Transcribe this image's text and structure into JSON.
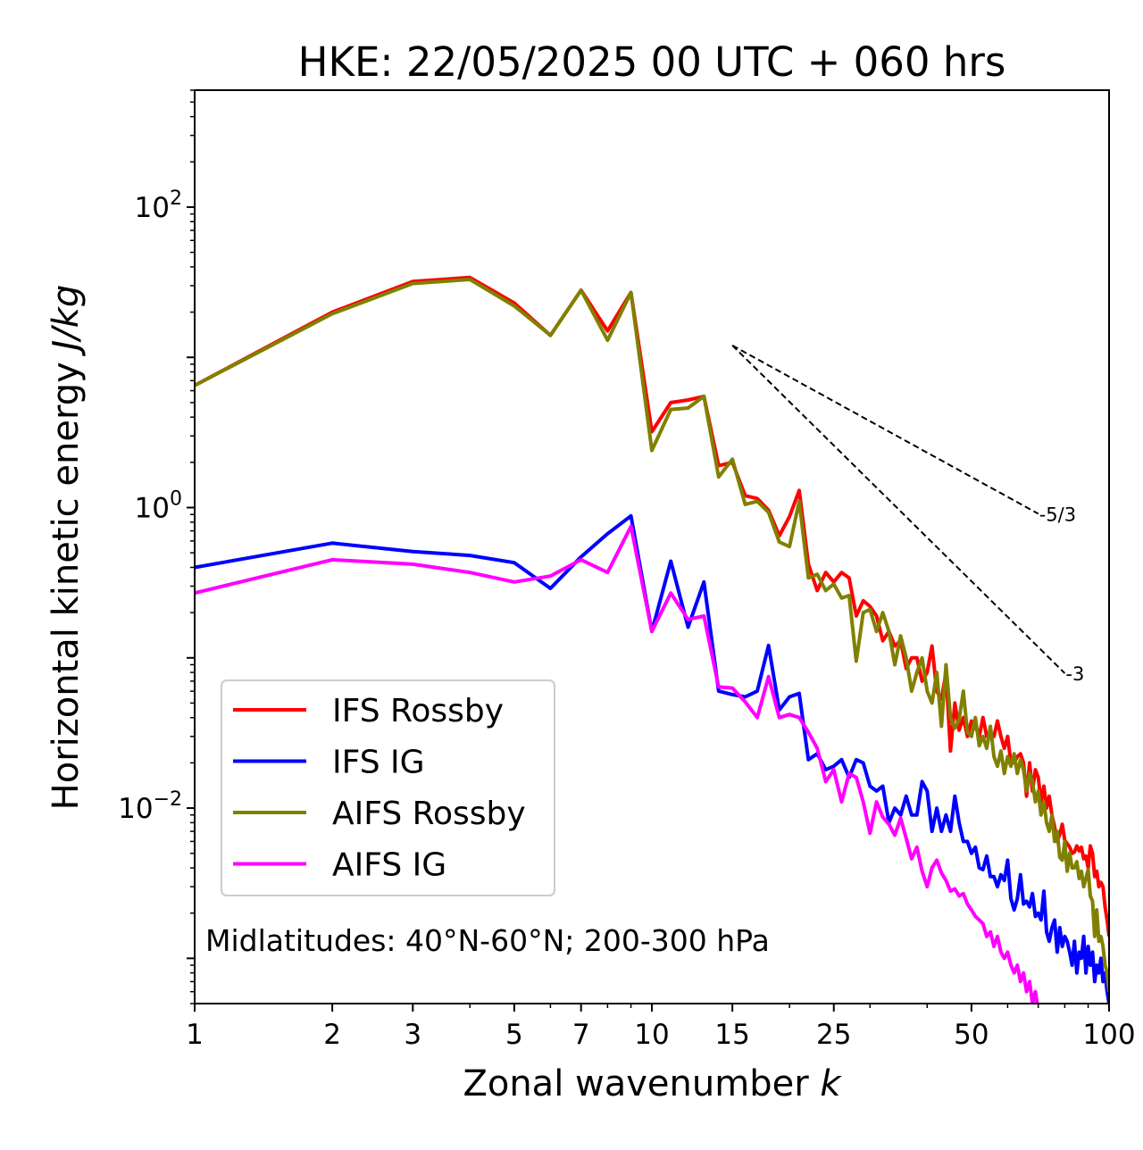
{
  "chart_data": {
    "type": "line",
    "title": "HKE: 22/05/2025 00 UTC + 060 hrs",
    "xlabel": "Zonal wavenumber",
    "xlabel_var": "k",
    "ylabel": "Horizontal kinetic energy",
    "ylabel_unit": "J/kg",
    "xscale": "log",
    "yscale": "log",
    "xlim": [
      1,
      100
    ],
    "ylim": [
      0.0005,
      600
    ],
    "x_ticks": [
      1,
      2,
      3,
      5,
      7,
      10,
      15,
      25,
      50,
      100
    ],
    "x_tick_labels": [
      "1",
      "2",
      "3",
      "5",
      "7",
      "10",
      "15",
      "25",
      "50",
      "100"
    ],
    "y_ticks": [
      0.01,
      1,
      100
    ],
    "y_tick_labels": [
      "10",
      "10",
      "10"
    ],
    "y_tick_exponents": [
      "−2",
      "0",
      "2"
    ],
    "grid": false,
    "legend_position": "lower-left",
    "annotation": "Midlatitudes: 40°N-60°N; 200-300 hPa",
    "reference_slopes": [
      {
        "label": "-5/3",
        "x": [
          15,
          70
        ],
        "y": [
          12.0,
          0.91
        ]
      },
      {
        "label": "-3",
        "x": [
          15,
          80
        ],
        "y": [
          12.0,
          0.079
        ]
      }
    ],
    "series": [
      {
        "name": "IFS Rossby",
        "color": "#ff0000",
        "x": [
          1,
          2,
          3,
          4,
          5,
          6,
          7,
          8,
          9,
          10,
          11,
          12,
          13,
          14,
          15,
          16,
          17,
          18,
          19,
          20,
          21,
          22,
          23,
          24,
          25,
          26,
          27,
          28,
          29,
          30,
          31,
          32,
          33,
          34,
          35,
          36,
          37,
          38,
          39,
          40,
          41,
          42,
          43,
          44,
          45,
          46,
          47,
          48,
          49,
          50,
          51,
          52,
          53,
          54,
          55,
          56,
          57,
          58,
          59,
          60,
          61,
          62,
          63,
          64,
          65,
          66,
          67,
          68,
          69,
          70,
          71,
          72,
          73,
          74,
          75,
          76,
          77,
          78,
          79,
          80,
          81,
          82,
          83,
          84,
          85,
          86,
          87,
          88,
          89,
          90,
          91,
          92,
          93,
          94,
          95,
          96,
          97,
          98,
          99,
          100
        ],
        "y": [
          6.5,
          20,
          32,
          34,
          23,
          14,
          28,
          15,
          27,
          3.2,
          5.0,
          5.2,
          5.5,
          1.9,
          2.0,
          1.2,
          1.15,
          0.96,
          0.65,
          0.87,
          1.3,
          0.42,
          0.28,
          0.37,
          0.32,
          0.37,
          0.34,
          0.19,
          0.24,
          0.22,
          0.19,
          0.13,
          0.15,
          0.12,
          0.13,
          0.085,
          0.1,
          0.1,
          0.07,
          0.08,
          0.12,
          0.06,
          0.053,
          0.08,
          0.024,
          0.05,
          0.033,
          0.04,
          0.03,
          0.038,
          0.035,
          0.03,
          0.04,
          0.03,
          0.03,
          0.03,
          0.038,
          0.03,
          0.025,
          0.03,
          0.02,
          0.02,
          0.022,
          0.023,
          0.02,
          0.012,
          0.02,
          0.013,
          0.018,
          0.016,
          0.011,
          0.014,
          0.01,
          0.012,
          0.009,
          0.0075,
          0.006,
          0.0067,
          0.0078,
          0.0061,
          0.0058,
          0.0055,
          0.005,
          0.0051,
          0.0056,
          0.0052,
          0.0055,
          0.0046,
          0.0048,
          0.004,
          0.0056,
          0.005,
          0.0035,
          0.0038,
          0.003,
          0.0032,
          0.003,
          0.0022,
          0.0018,
          0.0014
        ]
      },
      {
        "name": "IFS IG",
        "color": "#0000ff",
        "x": [
          1,
          2,
          3,
          4,
          5,
          6,
          7,
          8,
          9,
          10,
          11,
          12,
          13,
          14,
          15,
          16,
          17,
          18,
          19,
          20,
          21,
          22,
          23,
          24,
          25,
          26,
          27,
          28,
          29,
          30,
          31,
          32,
          33,
          34,
          35,
          36,
          37,
          38,
          39,
          40,
          41,
          42,
          43,
          44,
          45,
          46,
          47,
          48,
          49,
          50,
          51,
          52,
          53,
          54,
          55,
          56,
          57,
          58,
          59,
          60,
          61,
          62,
          63,
          64,
          65,
          66,
          67,
          68,
          69,
          70,
          71,
          72,
          73,
          74,
          75,
          76,
          77,
          78,
          79,
          80,
          81,
          82,
          83,
          84,
          85,
          86,
          87,
          88,
          89,
          90,
          91,
          92,
          93,
          94,
          95,
          96,
          97,
          98,
          99,
          100
        ],
        "y": [
          0.4,
          0.58,
          0.51,
          0.48,
          0.43,
          0.29,
          0.47,
          0.67,
          0.88,
          0.15,
          0.44,
          0.16,
          0.32,
          0.06,
          0.057,
          0.055,
          0.06,
          0.121,
          0.045,
          0.055,
          0.058,
          0.021,
          0.023,
          0.018,
          0.019,
          0.021,
          0.016,
          0.021,
          0.02,
          0.014,
          0.013,
          0.014,
          0.008,
          0.01,
          0.009,
          0.012,
          0.009,
          0.009,
          0.015,
          0.013,
          0.007,
          0.01,
          0.007,
          0.009,
          0.007,
          0.012,
          0.008,
          0.006,
          0.006,
          0.005,
          0.0055,
          0.004,
          0.0039,
          0.0048,
          0.0035,
          0.0035,
          0.003,
          0.0036,
          0.0033,
          0.0045,
          0.0025,
          0.0021,
          0.0025,
          0.0036,
          0.0023,
          0.0024,
          0.0022,
          0.0027,
          0.0019,
          0.002,
          0.0018,
          0.0028,
          0.0015,
          0.0013,
          0.0016,
          0.0018,
          0.0011,
          0.0016,
          0.0012,
          0.0014,
          0.0013,
          0.0011,
          0.0009,
          0.0013,
          0.0008,
          0.0011,
          0.001,
          0.0014,
          0.0008,
          0.0012,
          0.0009,
          0.0011,
          0.0007,
          0.0009,
          0.0008,
          0.001,
          0.0007,
          0.0008,
          0.0006,
          0.0005
        ]
      },
      {
        "name": "AIFS Rossby",
        "color": "#808000",
        "x": [
          1,
          2,
          3,
          4,
          5,
          6,
          7,
          8,
          9,
          10,
          11,
          12,
          13,
          14,
          15,
          16,
          17,
          18,
          19,
          20,
          21,
          22,
          23,
          24,
          25,
          26,
          27,
          28,
          29,
          30,
          31,
          32,
          33,
          34,
          35,
          36,
          37,
          38,
          39,
          40,
          41,
          42,
          43,
          44,
          45,
          46,
          47,
          48,
          49,
          50,
          51,
          52,
          53,
          54,
          55,
          56,
          57,
          58,
          59,
          60,
          61,
          62,
          63,
          64,
          65,
          66,
          67,
          68,
          69,
          70,
          71,
          72,
          73,
          74,
          75,
          76,
          77,
          78,
          79,
          80,
          81,
          82,
          83,
          84,
          85,
          86,
          87,
          88,
          89,
          90,
          91,
          92,
          93,
          94,
          95,
          96,
          97,
          98,
          99,
          100
        ],
        "y": [
          6.5,
          19.5,
          31,
          33,
          22,
          14,
          28,
          13,
          27,
          2.4,
          4.5,
          4.6,
          5.5,
          1.6,
          2.1,
          1.05,
          1.1,
          0.93,
          0.59,
          0.55,
          1.1,
          0.34,
          0.36,
          0.28,
          0.31,
          0.25,
          0.26,
          0.095,
          0.2,
          0.21,
          0.15,
          0.2,
          0.15,
          0.09,
          0.14,
          0.1,
          0.06,
          0.08,
          0.1,
          0.06,
          0.05,
          0.08,
          0.035,
          0.09,
          0.04,
          0.034,
          0.039,
          0.06,
          0.032,
          0.03,
          0.04,
          0.026,
          0.03,
          0.025,
          0.035,
          0.022,
          0.019,
          0.024,
          0.017,
          0.022,
          0.019,
          0.023,
          0.017,
          0.021,
          0.018,
          0.013,
          0.017,
          0.015,
          0.011,
          0.013,
          0.009,
          0.011,
          0.008,
          0.007,
          0.009,
          0.006,
          0.007,
          0.0047,
          0.0045,
          0.006,
          0.0038,
          0.005,
          0.004,
          0.004,
          0.0044,
          0.0034,
          0.0038,
          0.003,
          0.0034,
          0.0039,
          0.0026,
          0.0024,
          0.0014,
          0.0021,
          0.0013,
          0.0014,
          0.0012,
          0.0009,
          0.0008,
          0.0006
        ]
      },
      {
        "name": "AIFS IG",
        "color": "#ff00ff",
        "x": [
          1,
          2,
          3,
          4,
          5,
          6,
          7,
          8,
          9,
          10,
          11,
          12,
          13,
          14,
          15,
          16,
          17,
          18,
          19,
          20,
          21,
          22,
          23,
          24,
          25,
          26,
          27,
          28,
          29,
          30,
          31,
          32,
          33,
          34,
          35,
          36,
          37,
          38,
          39,
          40,
          41,
          42,
          43,
          44,
          45,
          46,
          47,
          48,
          49,
          50,
          51,
          52,
          53,
          54,
          55,
          56,
          57,
          58,
          59,
          60,
          61,
          62,
          63,
          64,
          65,
          66,
          67,
          68,
          69,
          70
        ],
        "y": [
          0.27,
          0.45,
          0.42,
          0.37,
          0.32,
          0.35,
          0.45,
          0.37,
          0.75,
          0.15,
          0.27,
          0.18,
          0.19,
          0.064,
          0.063,
          0.051,
          0.04,
          0.075,
          0.04,
          0.042,
          0.04,
          0.032,
          0.025,
          0.015,
          0.018,
          0.011,
          0.017,
          0.016,
          0.011,
          0.0068,
          0.011,
          0.0087,
          0.0078,
          0.0066,
          0.0086,
          0.0063,
          0.0046,
          0.0055,
          0.0038,
          0.003,
          0.004,
          0.0045,
          0.0037,
          0.0033,
          0.0028,
          0.0029,
          0.0026,
          0.0027,
          0.0023,
          0.0021,
          0.0019,
          0.0018,
          0.0017,
          0.0014,
          0.0015,
          0.0012,
          0.0014,
          0.0011,
          0.001,
          0.0011,
          0.0009,
          0.0008,
          0.0009,
          0.0007,
          0.0008,
          0.0006,
          0.0007,
          0.0005,
          0.0006,
          0.00045
        ]
      }
    ]
  }
}
